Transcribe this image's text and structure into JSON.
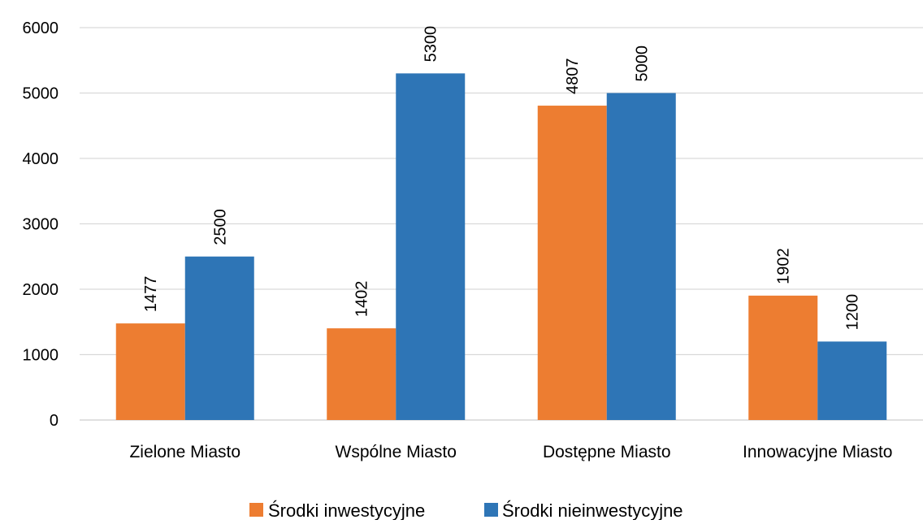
{
  "chart_data": {
    "type": "bar",
    "categories": [
      "Zielone Miasto",
      "Wspólne Miasto",
      "Dostępne Miasto",
      "Innowacyjne Miasto"
    ],
    "series": [
      {
        "name": "Środki inwestycyjne",
        "values": [
          1477,
          1402,
          4807,
          1902
        ],
        "color": "#ED7D31"
      },
      {
        "name": "Środki nieinwestycyjne",
        "values": [
          2500,
          5300,
          5000,
          1200
        ],
        "color": "#2E75B6"
      }
    ],
    "yticks": [
      0,
      1000,
      2000,
      3000,
      4000,
      5000,
      6000
    ],
    "ylim": [
      0,
      6000
    ],
    "grid": true,
    "legend_position": "bottom",
    "data_labels": "rotated-vertical"
  }
}
